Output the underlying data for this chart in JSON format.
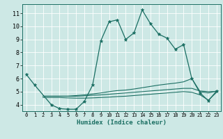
{
  "xlabel": "Humidex (Indice chaleur)",
  "bg_color": "#cde8e5",
  "line_color": "#1a6e62",
  "grid_color": "#ffffff",
  "xlim": [
    -0.5,
    23.5
  ],
  "ylim": [
    3.5,
    11.7
  ],
  "xticks": [
    0,
    1,
    2,
    3,
    4,
    5,
    6,
    7,
    8,
    9,
    10,
    11,
    12,
    13,
    14,
    15,
    16,
    17,
    18,
    19,
    20,
    21,
    22,
    23
  ],
  "yticks": [
    4,
    5,
    6,
    7,
    8,
    9,
    10,
    11
  ],
  "main_x": [
    0,
    1,
    3,
    4,
    5,
    6,
    7,
    8,
    9,
    10,
    11,
    12,
    13,
    14,
    15,
    16,
    17,
    18,
    19,
    20,
    21,
    22,
    23
  ],
  "main_y": [
    6.3,
    5.5,
    4.0,
    3.7,
    3.65,
    3.65,
    4.25,
    5.5,
    8.9,
    10.35,
    10.5,
    9.0,
    9.5,
    11.25,
    10.2,
    9.4,
    9.1,
    8.25,
    8.6,
    6.0,
    4.9,
    4.3,
    5.05
  ],
  "flat1_x": [
    2,
    3,
    4,
    5,
    6,
    7,
    8,
    9,
    10,
    11,
    12,
    13,
    14,
    15,
    16,
    17,
    18,
    19,
    20,
    21,
    22,
    23
  ],
  "flat1_y": [
    4.65,
    4.65,
    4.65,
    4.65,
    4.65,
    4.68,
    4.72,
    4.75,
    4.8,
    4.85,
    4.9,
    4.95,
    5.0,
    5.05,
    5.1,
    5.15,
    5.2,
    5.25,
    5.25,
    5.05,
    5.0,
    5.0
  ],
  "flat2_x": [
    2,
    3,
    4,
    5,
    6,
    7,
    8,
    9,
    10,
    11,
    12,
    13,
    14,
    15,
    16,
    17,
    18,
    19,
    20,
    21,
    22,
    23
  ],
  "flat2_y": [
    4.55,
    4.55,
    4.55,
    4.52,
    4.5,
    4.5,
    4.52,
    4.55,
    4.58,
    4.62,
    4.65,
    4.7,
    4.75,
    4.8,
    4.85,
    4.9,
    4.95,
    5.0,
    4.95,
    4.75,
    4.35,
    4.95
  ],
  "flat3_x": [
    2,
    3,
    4,
    5,
    6,
    7,
    8,
    9,
    10,
    11,
    12,
    13,
    14,
    15,
    16,
    17,
    18,
    19,
    20,
    21,
    22,
    23
  ],
  "flat3_y": [
    4.65,
    4.65,
    4.65,
    4.65,
    4.7,
    4.75,
    4.82,
    4.9,
    5.0,
    5.08,
    5.12,
    5.2,
    5.3,
    5.4,
    5.5,
    5.58,
    5.65,
    5.75,
    6.0,
    5.0,
    4.9,
    5.05
  ]
}
